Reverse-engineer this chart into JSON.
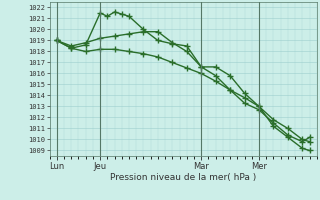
{
  "xlabel": "Pression niveau de la mer( hPa )",
  "ylim": [
    1008.5,
    1022.5
  ],
  "yticks": [
    1009,
    1010,
    1011,
    1012,
    1013,
    1014,
    1015,
    1016,
    1017,
    1018,
    1019,
    1020,
    1021,
    1022
  ],
  "background_color": "#cceee8",
  "grid_color": "#99cccc",
  "line_color": "#2a6e2a",
  "marker": "+",
  "markersize": 4,
  "linewidth": 1.0,
  "day_labels": [
    "Lun",
    "Jeu",
    "Mar",
    "Mer"
  ],
  "day_positions": [
    0,
    6,
    20,
    28
  ],
  "xlim": [
    -1,
    36
  ],
  "vline_color": "#557766",
  "vline_positions": [
    0,
    6,
    20,
    28
  ],
  "line1_x": [
    0,
    2,
    4,
    6,
    7,
    8,
    9,
    10,
    12,
    14,
    16,
    18,
    20,
    22,
    24,
    26,
    28,
    30,
    32,
    34,
    35
  ],
  "line1_y": [
    1019.0,
    1018.3,
    1018.6,
    1021.5,
    1021.2,
    1021.6,
    1021.4,
    1021.2,
    1020.0,
    1019.0,
    1018.7,
    1018.5,
    1016.6,
    1016.6,
    1015.8,
    1014.2,
    1013.0,
    1011.2,
    1010.2,
    1009.2,
    1009.0
  ],
  "line2_x": [
    0,
    2,
    4,
    6,
    8,
    10,
    12,
    14,
    16,
    18,
    20,
    22,
    24,
    26,
    28,
    30,
    32,
    34,
    35
  ],
  "line2_y": [
    1019.0,
    1018.5,
    1018.8,
    1019.2,
    1019.4,
    1019.6,
    1019.8,
    1019.8,
    1018.8,
    1018.0,
    1016.6,
    1015.8,
    1014.5,
    1013.3,
    1012.7,
    1011.5,
    1010.4,
    1009.8,
    1010.2
  ],
  "line3_x": [
    0,
    2,
    4,
    6,
    8,
    10,
    12,
    14,
    16,
    18,
    20,
    22,
    24,
    26,
    28,
    30,
    32,
    34,
    35
  ],
  "line3_y": [
    1019.0,
    1018.3,
    1018.0,
    1018.2,
    1018.2,
    1018.0,
    1017.8,
    1017.5,
    1017.0,
    1016.5,
    1016.0,
    1015.3,
    1014.5,
    1013.8,
    1013.0,
    1011.8,
    1011.0,
    1010.0,
    1009.8
  ]
}
